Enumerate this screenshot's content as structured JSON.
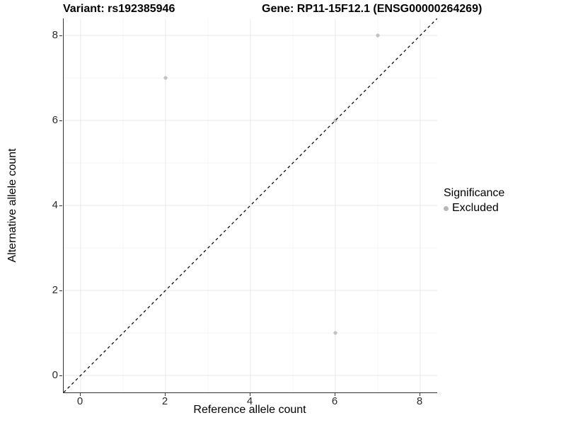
{
  "header": {
    "title_left": "Variant: rs192385946",
    "title_right": "Gene: RP11-15F12.1 (ENSG00000264269)"
  },
  "chart_data": {
    "type": "scatter",
    "xlabel": "Reference allele count",
    "ylabel": "Alternative allele count",
    "xlim": [
      -0.4,
      8.4
    ],
    "ylim": [
      -0.4,
      8.4
    ],
    "x_ticks": [
      0,
      2,
      4,
      6,
      8
    ],
    "y_ticks": [
      0,
      2,
      4,
      6,
      8
    ],
    "x_minor_gridlines": [
      1,
      3,
      5,
      7
    ],
    "y_minor_gridlines": [
      1,
      3,
      5,
      7
    ],
    "grid": "major and minor gridlines, every 1 unit",
    "series": [
      {
        "name": "Excluded",
        "color": "#c2c2c2",
        "points": [
          {
            "x": 2,
            "y": 7
          },
          {
            "x": 6,
            "y": 1
          },
          {
            "x": 6,
            "y": 6
          },
          {
            "x": 7,
            "y": 8
          }
        ]
      }
    ],
    "reference_line": {
      "label": "identity y = x",
      "style": "dashed",
      "color": "#000000",
      "from": [
        -0.4,
        -0.4
      ],
      "to": [
        8.4,
        8.4
      ]
    },
    "legend": {
      "position": "right",
      "title": "Significance",
      "items": [
        {
          "label": "Excluded",
          "color": "#b8b8b8"
        }
      ]
    },
    "style_colors": {
      "grid_major": "#e9e9e9",
      "grid_minor": "#f4f4f4",
      "axis_line": "#333333",
      "point": "#c2c2c2"
    }
  }
}
